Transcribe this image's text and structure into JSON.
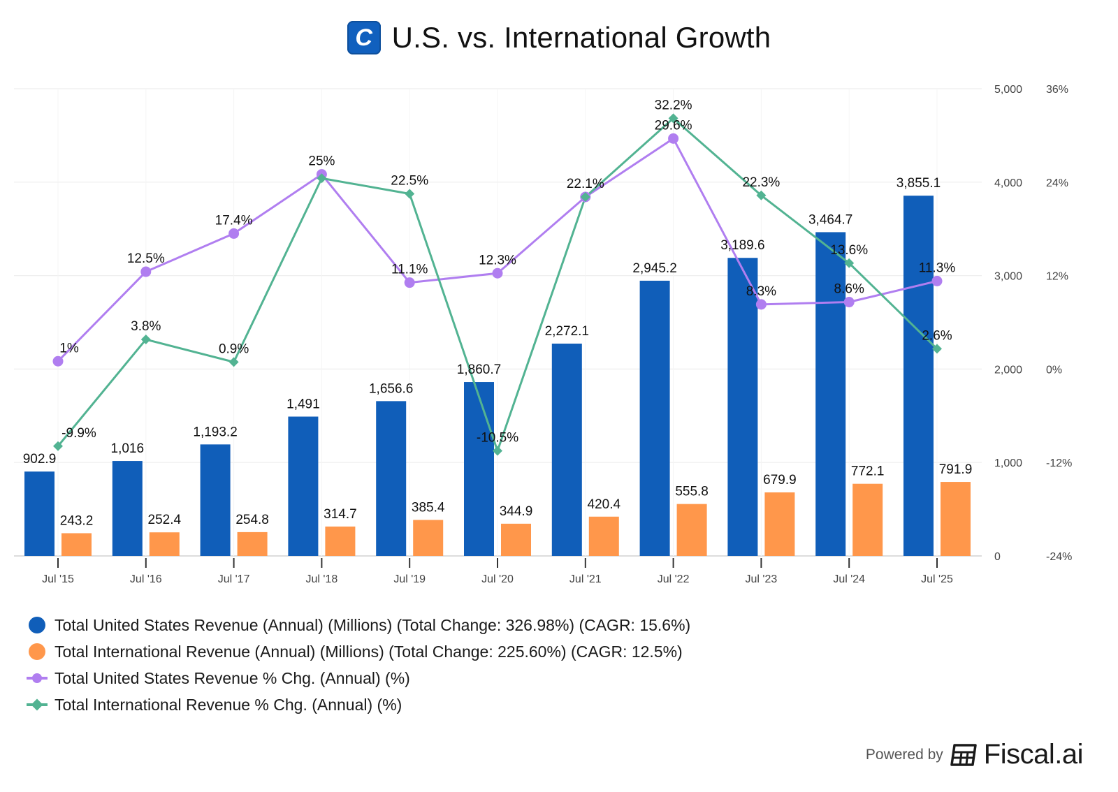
{
  "header": {
    "logo_letter": "C",
    "title": "U.S. vs. International Growth"
  },
  "colors": {
    "us_bar": "#105eb9",
    "intl_bar": "#ff974b",
    "us_line": "#b07ef0",
    "intl_line": "#52b392",
    "grid": "#eeeeee",
    "axis": "#dddddd"
  },
  "chart_data": {
    "type": "bar+line",
    "title": "U.S. vs. International Growth",
    "categories": [
      "Jul '15",
      "Jul '16",
      "Jul '17",
      "Jul '18",
      "Jul '19",
      "Jul '20",
      "Jul '21",
      "Jul '22",
      "Jul '23",
      "Jul '24",
      "Jul '25"
    ],
    "left_axis": {
      "ylim": [
        0,
        5000
      ],
      "ticks": [
        "0",
        "1,000",
        "2,000",
        "3,000",
        "4,000",
        "5,000"
      ],
      "tick_values": [
        0,
        1000,
        2000,
        3000,
        4000,
        5000
      ]
    },
    "right_axis": {
      "ylim": [
        -24,
        36
      ],
      "ticks": [
        "-24%",
        "-12%",
        "0%",
        "12%",
        "24%",
        "36%"
      ],
      "tick_values": [
        -24,
        -12,
        0,
        12,
        24,
        36
      ]
    },
    "grid": true,
    "legend_position": "bottom-left",
    "series": [
      {
        "name": "Total United States Revenue (Annual) (Millions) (Total Change: 326.98%) (CAGR: 15.6%)",
        "kind": "bar",
        "axis": "left",
        "color": "#105eb9",
        "values": [
          902.9,
          1016,
          1193.2,
          1491,
          1656.6,
          1860.7,
          2272.1,
          2945.2,
          3189.6,
          3464.7,
          3855.1
        ],
        "labels": [
          "902.9",
          "1,016",
          "1,193.2",
          "1,491",
          "1,656.6",
          "1,860.7",
          "2,272.1",
          "2,945.2",
          "3,189.6",
          "3,464.7",
          "3,855.1"
        ]
      },
      {
        "name": "Total International Revenue (Annual) (Millions) (Total Change: 225.60%) (CAGR: 12.5%)",
        "kind": "bar",
        "axis": "left",
        "color": "#ff974b",
        "values": [
          243.2,
          252.4,
          254.8,
          314.7,
          385.4,
          344.9,
          420.4,
          555.8,
          679.9,
          772.1,
          791.9
        ],
        "labels": [
          "243.2",
          "252.4",
          "254.8",
          "314.7",
          "385.4",
          "344.9",
          "420.4",
          "555.8",
          "679.9",
          "772.1",
          "791.9"
        ]
      },
      {
        "name": "Total United States Revenue % Chg. (Annual) (%)",
        "kind": "line",
        "marker": "circle",
        "axis": "right",
        "color": "#b07ef0",
        "values": [
          1,
          12.5,
          17.4,
          25,
          11.1,
          12.3,
          22.1,
          29.6,
          8.3,
          8.6,
          11.3
        ],
        "labels": [
          "1%",
          "12.5%",
          "17.4%",
          "25%",
          "11.1%",
          "12.3%",
          "22.1%",
          "29.6%",
          "8.3%",
          "8.6%",
          "11.3%"
        ]
      },
      {
        "name": "Total International Revenue % Chg. (Annual) (%)",
        "kind": "line",
        "marker": "diamond",
        "axis": "right",
        "color": "#52b392",
        "values": [
          -9.9,
          3.8,
          0.9,
          24.5,
          22.5,
          -10.5,
          22.1,
          32.2,
          22.3,
          13.6,
          2.6
        ],
        "labels": [
          "-9.9%",
          "3.8%",
          "0.9%",
          "",
          "22.5%",
          "-10.5%",
          "",
          "32.2%",
          "22.3%",
          "13.6%",
          "2.6%"
        ]
      }
    ]
  },
  "footer": {
    "powered_by": "Powered by",
    "brand": "Fiscal.ai"
  }
}
